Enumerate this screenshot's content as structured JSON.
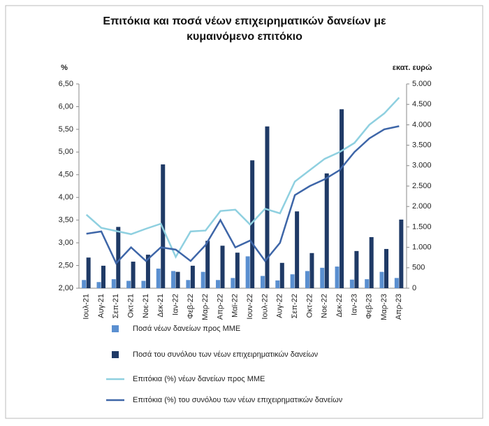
{
  "chart_data": {
    "type": "bar",
    "title": "Επιτόκια και ποσά νέων επιχειρηματικών δανείων με κυμαινόμενο επιτόκιο",
    "ylabel": "%",
    "y2label": "εκατ. ευρώ",
    "categories": [
      "Ιουλ-21",
      "Αυγ-21",
      "Σεπ-21",
      "Οκτ-21",
      "Νοε-21",
      "Δεκ-21",
      "Ιαν-22",
      "Φεβ-22",
      "Μαρ-22",
      "Απρ-22",
      "Μαϊ-22",
      "Ιουν-22",
      "Ιουλ-22",
      "Αυγ-22",
      "Σεπ-22",
      "Οκτ-22",
      "Νοε-22",
      "Δεκ-22",
      "Ιαν-23",
      "Φεβ-23",
      "Μαρ-23",
      "Απρ-23"
    ],
    "ylim": [
      2,
      6.5
    ],
    "yticks": [
      {
        "value": 2,
        "label": "2,00"
      },
      {
        "value": 2.5,
        "label": "2,50"
      },
      {
        "value": 3,
        "label": "3,00"
      },
      {
        "value": 3.5,
        "label": "3,50"
      },
      {
        "value": 4,
        "label": "4,00"
      },
      {
        "value": 4.5,
        "label": "4,50"
      },
      {
        "value": 5,
        "label": "5,00"
      },
      {
        "value": 5.5,
        "label": "5,50"
      },
      {
        "value": 6,
        "label": "6,00"
      },
      {
        "value": 6.5,
        "label": "6,50"
      }
    ],
    "y2lim": [
      0,
      5000
    ],
    "y2ticks": [
      0,
      500,
      {
        "value": 1000,
        "label": "1.000"
      },
      {
        "value": 1500,
        "label": "1.500"
      },
      {
        "value": 2000,
        "label": "2.000"
      },
      {
        "value": 2500,
        "label": "2.500"
      },
      {
        "value": 3000,
        "label": "3.000"
      },
      {
        "value": 3500,
        "label": "3.500"
      },
      {
        "value": 4000,
        "label": "4.000"
      },
      {
        "value": 4500,
        "label": "4.500"
      },
      {
        "value": 5000,
        "label": "5.000"
      }
    ],
    "grid": false,
    "series": [
      {
        "name": "Ποσά νέων δανείων προς ΜΜΕ",
        "type": "bar",
        "axis": "y2",
        "color": "#5a8fd0",
        "values": [
          200,
          150,
          220,
          180,
          180,
          480,
          420,
          200,
          400,
          200,
          250,
          780,
          300,
          190,
          340,
          420,
          500,
          530,
          210,
          220,
          400,
          250
        ]
      },
      {
        "name": "Ποσά του συνόλου των νέων επιχειρηματικών δανείων",
        "type": "bar",
        "axis": "y2",
        "color": "#1f3a66",
        "values": [
          750,
          550,
          1500,
          650,
          820,
          3030,
          400,
          550,
          1160,
          1040,
          870,
          3130,
          3960,
          620,
          1880,
          860,
          2810,
          4380,
          910,
          1250,
          960,
          1680
        ]
      },
      {
        "name": "Επιτόκια (%) νέων δανείων προς ΜΜΕ",
        "type": "line",
        "color": "#8fd0e0",
        "values": [
          3.62,
          3.33,
          3.26,
          3.19,
          3.31,
          3.42,
          2.69,
          3.25,
          3.27,
          3.7,
          3.73,
          3.4,
          3.75,
          3.65,
          4.35,
          4.6,
          4.85,
          5.0,
          5.2,
          5.6,
          5.85,
          6.2
        ]
      },
      {
        "name": "Επιτόκια (%) του συνόλου των νέων επιχειρηματικών δανείων",
        "type": "line",
        "color": "#3e66a8",
        "values": [
          3.2,
          3.25,
          2.55,
          2.9,
          2.6,
          2.9,
          2.85,
          2.6,
          2.95,
          3.5,
          2.9,
          3.05,
          2.6,
          3.0,
          4.05,
          4.25,
          4.4,
          4.6,
          5.0,
          5.3,
          5.5,
          5.57
        ]
      }
    ]
  }
}
